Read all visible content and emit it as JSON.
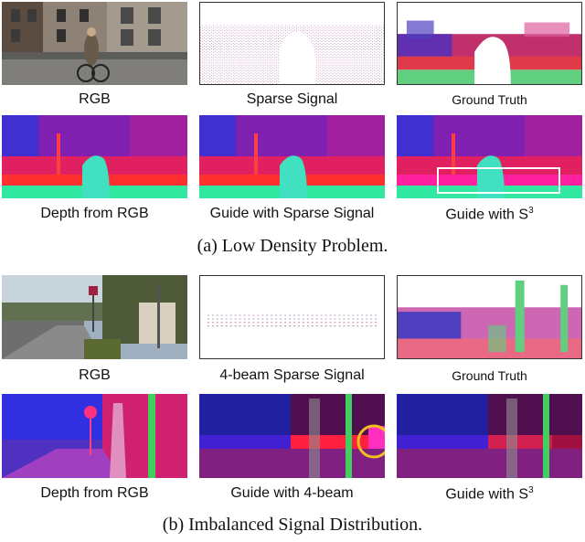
{
  "section_a": {
    "caption": "(a) Low Density Problem.",
    "row1": {
      "rgb": "RGB",
      "sparse": "Sparse Signal",
      "gt": "Ground Truth"
    },
    "row2": {
      "depth": "Depth from RGB",
      "guide_sparse": "Guide with Sparse Signal",
      "guide_s3_prefix": "Guide with S",
      "guide_s3_sup": "3"
    }
  },
  "section_b": {
    "caption": "(b) Imbalanced Signal Distribution.",
    "row1": {
      "rgb": "RGB",
      "sparse": "4-beam Sparse Signal",
      "gt": "Ground Truth"
    },
    "row2": {
      "depth": "Depth from RGB",
      "guide_4beam": "Guide with 4-beam",
      "guide_s3_prefix": "Guide with S",
      "guide_s3_sup": "3"
    }
  },
  "colors": {
    "highlight_box": "#ffffff",
    "highlight_circle": "#f0c020"
  }
}
